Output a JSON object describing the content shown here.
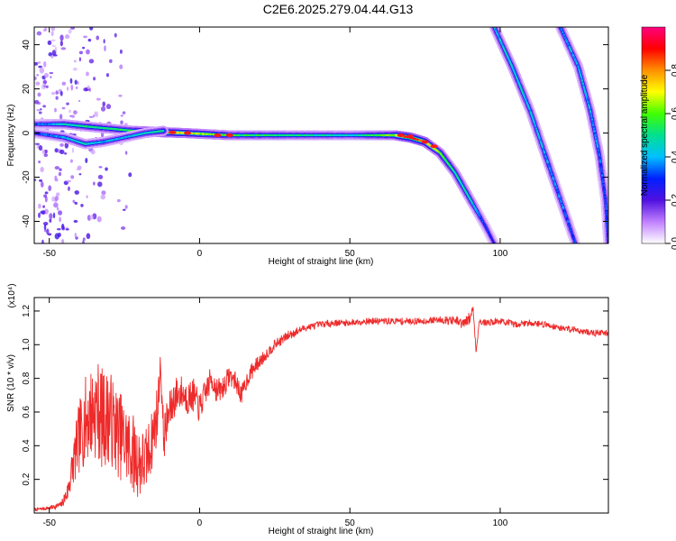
{
  "title": "C2E6.2025.279.04.44.G13",
  "chart_data": [
    {
      "type": "heatmap",
      "xlabel": "Height of straight line (km)",
      "ylabel": "Frequency (Hz)",
      "xlim": [
        -55,
        136
      ],
      "ylim": [
        -50,
        48
      ],
      "x_ticks": [
        -50,
        0,
        50,
        100
      ],
      "y_ticks": [
        -40,
        -20,
        0,
        20,
        40
      ],
      "grid": false,
      "colorbar": {
        "label": "Normalized spectral amplitude",
        "range": [
          0,
          1
        ],
        "ticks": [
          "0.0",
          "0.2",
          "0.4",
          "0.6",
          "0.8"
        ],
        "tick_values": [
          0,
          0.2,
          0.4,
          0.6,
          0.8
        ],
        "colors": [
          "#ffffff",
          "#c080ff",
          "#5010e0",
          "#0020ff",
          "#00c0ff",
          "#00e090",
          "#40ff00",
          "#ffff00",
          "#ff9000",
          "#ff0000",
          "#ff0080"
        ]
      },
      "tracks": [
        {
          "name": "main",
          "points": [
            [
              -55,
              4
            ],
            [
              -45,
              4
            ],
            [
              -38,
              3
            ],
            [
              -30,
              2
            ],
            [
              -22,
              1
            ],
            [
              -15,
              0.5
            ],
            [
              -5,
              0
            ],
            [
              10,
              -1
            ],
            [
              30,
              -1
            ],
            [
              50,
              -1
            ],
            [
              65,
              -1
            ],
            [
              70,
              -2
            ],
            [
              75,
              -4
            ],
            [
              80,
              -9
            ],
            [
              85,
              -18
            ],
            [
              90,
              -30
            ],
            [
              95,
              -42
            ],
            [
              98,
              -50
            ]
          ],
          "amplitude": [
            0.3,
            0.45,
            0.5,
            0.5,
            0.55,
            0.9,
            0.7,
            0.55,
            0.5,
            0.45,
            0.65,
            0.95,
            0.8,
            0.6,
            0.5,
            0.45,
            0.3,
            0.25
          ]
        },
        {
          "name": "branch",
          "points": [
            [
              -55,
              0
            ],
            [
              -45,
              -2
            ],
            [
              -38,
              -5
            ],
            [
              -32,
              -4
            ],
            [
              -25,
              -2
            ],
            [
              -18,
              0
            ],
            [
              -12,
              1
            ]
          ],
          "amplitude": [
            0.3,
            0.4,
            0.45,
            0.4,
            0.4,
            0.45,
            0.5
          ]
        },
        {
          "name": "oblique-1",
          "points": [
            [
              98,
              48
            ],
            [
              104,
              30
            ],
            [
              110,
              10
            ],
            [
              115,
              -10
            ],
            [
              120,
              -30
            ],
            [
              125,
              -50
            ]
          ],
          "amplitude": [
            0.4,
            0.45,
            0.4,
            0.4,
            0.35,
            0.3
          ]
        },
        {
          "name": "oblique-2",
          "points": [
            [
              120,
              48
            ],
            [
              126,
              30
            ],
            [
              130,
              10
            ],
            [
              133,
              -10
            ],
            [
              135,
              -30
            ],
            [
              136,
              -50
            ]
          ],
          "amplitude": [
            0.35,
            0.4,
            0.4,
            0.35,
            0.3,
            0.3
          ]
        }
      ]
    },
    {
      "type": "line",
      "xlabel": "Height of straight line (km)",
      "ylabel": "SNR (10 * v/v)",
      "y_multiplier": "(x10⁴)",
      "xlim": [
        -55,
        136
      ],
      "ylim": [
        0,
        1.28
      ],
      "x_ticks": [
        -50,
        0,
        50,
        100
      ],
      "y_ticks": [
        0.2,
        0.4,
        0.6,
        0.8,
        1.0,
        1.2
      ],
      "y_tick_labels": [
        "0.2",
        "0.4",
        "0.6",
        "0.8",
        "1.0",
        "1.2"
      ],
      "grid": false,
      "color": "#ee2a2a",
      "series": [
        {
          "x": [
            -55,
            -50,
            -46,
            -44,
            -42,
            -40,
            -38,
            -36,
            -34,
            -32,
            -30,
            -28,
            -26,
            -24,
            -22,
            -20,
            -18,
            -16,
            -14,
            -13,
            -12,
            -10,
            -8,
            -6,
            -4,
            -2,
            0,
            2,
            4,
            6,
            8,
            10,
            12,
            14,
            16,
            18,
            20,
            25,
            30,
            35,
            40,
            45,
            50,
            55,
            60,
            65,
            70,
            75,
            80,
            85,
            88,
            90,
            91,
            92,
            93,
            95,
            100,
            105,
            110,
            115,
            120,
            125,
            130,
            136
          ],
          "y": [
            0.02,
            0.03,
            0.05,
            0.12,
            0.3,
            0.45,
            0.55,
            0.6,
            0.62,
            0.55,
            0.58,
            0.5,
            0.45,
            0.4,
            0.35,
            0.3,
            0.3,
            0.42,
            0.6,
            0.9,
            0.45,
            0.6,
            0.7,
            0.72,
            0.68,
            0.7,
            0.62,
            0.72,
            0.8,
            0.72,
            0.75,
            0.82,
            0.78,
            0.7,
            0.8,
            0.86,
            0.9,
            1.0,
            1.06,
            1.1,
            1.12,
            1.13,
            1.13,
            1.14,
            1.14,
            1.14,
            1.14,
            1.14,
            1.15,
            1.14,
            1.12,
            1.16,
            1.22,
            0.95,
            1.14,
            1.13,
            1.14,
            1.12,
            1.13,
            1.12,
            1.1,
            1.09,
            1.07,
            1.07
          ],
          "noise": [
            0.01,
            0.01,
            0.02,
            0.06,
            0.14,
            0.22,
            0.26,
            0.28,
            0.3,
            0.3,
            0.28,
            0.27,
            0.26,
            0.25,
            0.24,
            0.22,
            0.2,
            0.18,
            0.18,
            0.05,
            0.15,
            0.12,
            0.12,
            0.1,
            0.1,
            0.1,
            0.09,
            0.08,
            0.08,
            0.08,
            0.07,
            0.06,
            0.06,
            0.06,
            0.05,
            0.05,
            0.04,
            0.03,
            0.03,
            0.02,
            0.02,
            0.02,
            0.02,
            0.02,
            0.02,
            0.02,
            0.02,
            0.02,
            0.02,
            0.03,
            0.04,
            0.04,
            0.02,
            0.02,
            0.02,
            0.02,
            0.02,
            0.02,
            0.02,
            0.02,
            0.02,
            0.02,
            0.02,
            0.02
          ]
        }
      ]
    }
  ]
}
